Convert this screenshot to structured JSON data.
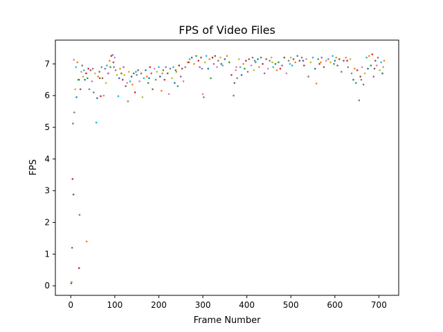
{
  "chart_data": {
    "type": "scatter",
    "title": "FPS of Video Files",
    "xlabel": "Frame Number",
    "ylabel": "FPS",
    "xlim": [
      -35,
      745
    ],
    "ylim": [
      -0.3,
      7.75
    ],
    "xticks": [
      0,
      100,
      200,
      300,
      400,
      500,
      600,
      700
    ],
    "yticks": [
      0,
      1,
      2,
      3,
      4,
      5,
      6,
      7
    ],
    "grid": false,
    "palette": [
      "#1f77b4",
      "#ff7f0e",
      "#2ca02c",
      "#d62728",
      "#9467bd",
      "#8c564b",
      "#e377c2",
      "#7f7f7f",
      "#bcbd22",
      "#17becf"
    ],
    "points": [
      [
        1,
        0.08
      ],
      [
        2,
        0.12
      ],
      [
        3,
        1.2
      ],
      [
        4,
        3.37
      ],
      [
        5,
        5.12
      ],
      [
        6,
        2.88
      ],
      [
        7,
        7.13
      ],
      [
        8,
        5.47
      ],
      [
        10,
        6.2
      ],
      [
        12,
        6.9
      ],
      [
        13,
        5.95
      ],
      [
        15,
        7.05
      ],
      [
        17,
        6.5
      ],
      [
        19,
        0.56
      ],
      [
        20,
        2.24
      ],
      [
        22,
        6.2
      ],
      [
        24,
        6.75
      ],
      [
        26,
        6.95
      ],
      [
        28,
        6.6
      ],
      [
        30,
        6.8
      ],
      [
        32,
        6.5
      ],
      [
        36,
        1.4
      ],
      [
        38,
        6.55
      ],
      [
        40,
        6.85
      ],
      [
        42,
        6.2
      ],
      [
        45,
        6.8
      ],
      [
        48,
        6.45
      ],
      [
        52,
        6.1
      ],
      [
        55,
        6.7
      ],
      [
        58,
        5.15
      ],
      [
        60,
        5.92
      ],
      [
        62,
        6.6
      ],
      [
        65,
        6.75
      ],
      [
        68,
        5.98
      ],
      [
        70,
        6.9
      ],
      [
        72,
        6.55
      ],
      [
        75,
        6.0
      ],
      [
        78,
        6.85
      ],
      [
        80,
        6.4
      ],
      [
        82,
        6.95
      ],
      [
        85,
        6.7
      ],
      [
        88,
        7.1
      ],
      [
        90,
        6.9
      ],
      [
        92,
        7.25
      ],
      [
        95,
        7.28
      ],
      [
        97,
        7.05
      ],
      [
        100,
        7.2
      ],
      [
        102,
        6.8
      ],
      [
        105,
        6.65
      ],
      [
        108,
        5.98
      ],
      [
        110,
        6.55
      ],
      [
        112,
        6.85
      ],
      [
        115,
        6.7
      ],
      [
        118,
        6.5
      ],
      [
        120,
        6.9
      ],
      [
        125,
        6.3
      ],
      [
        128,
        6.4
      ],
      [
        130,
        5.82
      ],
      [
        132,
        6.75
      ],
      [
        135,
        6.45
      ],
      [
        138,
        6.6
      ],
      [
        140,
        6.35
      ],
      [
        143,
        6.7
      ],
      [
        146,
        6.1
      ],
      [
        150,
        6.65
      ],
      [
        153,
        6.8
      ],
      [
        156,
        6.45
      ],
      [
        160,
        6.7
      ],
      [
        163,
        5.95
      ],
      [
        166,
        6.55
      ],
      [
        170,
        6.8
      ],
      [
        173,
        6.6
      ],
      [
        176,
        6.4
      ],
      [
        180,
        6.9
      ],
      [
        183,
        6.7
      ],
      [
        186,
        6.2
      ],
      [
        190,
        6.85
      ],
      [
        193,
        6.5
      ],
      [
        196,
        6.75
      ],
      [
        200,
        6.9
      ],
      [
        203,
        6.6
      ],
      [
        206,
        6.15
      ],
      [
        210,
        6.8
      ],
      [
        213,
        6.5
      ],
      [
        216,
        6.9
      ],
      [
        220,
        6.7
      ],
      [
        223,
        6.05
      ],
      [
        226,
        6.85
      ],
      [
        230,
        6.55
      ],
      [
        233,
        6.9
      ],
      [
        236,
        6.4
      ],
      [
        240,
        6.75
      ],
      [
        243,
        6.3
      ],
      [
        246,
        6.95
      ],
      [
        250,
        6.6
      ],
      [
        253,
        6.85
      ],
      [
        256,
        6.45
      ],
      [
        260,
        6.9
      ],
      [
        265,
        7.05
      ],
      [
        270,
        7.15
      ],
      [
        275,
        7.2
      ],
      [
        280,
        7.0
      ],
      [
        285,
        7.25
      ],
      [
        290,
        7.1
      ],
      [
        293,
        6.9
      ],
      [
        296,
        7.2
      ],
      [
        300,
        6.05
      ],
      [
        302,
        5.95
      ],
      [
        305,
        7.05
      ],
      [
        308,
        7.25
      ],
      [
        312,
        6.85
      ],
      [
        315,
        7.15
      ],
      [
        318,
        6.55
      ],
      [
        322,
        7.2
      ],
      [
        325,
        7.0
      ],
      [
        328,
        7.25
      ],
      [
        332,
        6.9
      ],
      [
        335,
        7.1
      ],
      [
        340,
        7.2
      ],
      [
        345,
        6.95
      ],
      [
        350,
        7.15
      ],
      [
        355,
        7.25
      ],
      [
        360,
        7.05
      ],
      [
        365,
        6.65
      ],
      [
        370,
        6.0
      ],
      [
        372,
        6.4
      ],
      [
        375,
        6.8
      ],
      [
        378,
        6.55
      ],
      [
        382,
        7.15
      ],
      [
        385,
        6.9
      ],
      [
        388,
        6.65
      ],
      [
        392,
        7.0
      ],
      [
        395,
        6.85
      ],
      [
        398,
        7.1
      ],
      [
        402,
        6.75
      ],
      [
        405,
        7.15
      ],
      [
        410,
        6.95
      ],
      [
        413,
        7.2
      ],
      [
        416,
        6.8
      ],
      [
        420,
        7.05
      ],
      [
        425,
        7.15
      ],
      [
        428,
        6.9
      ],
      [
        432,
        7.2
      ],
      [
        436,
        7.0
      ],
      [
        440,
        6.7
      ],
      [
        444,
        7.15
      ],
      [
        448,
        6.85
      ],
      [
        452,
        7.1
      ],
      [
        456,
        7.2
      ],
      [
        460,
        6.9
      ],
      [
        465,
        7.0
      ],
      [
        468,
        6.8
      ],
      [
        472,
        7.05
      ],
      [
        476,
        6.85
      ],
      [
        480,
        6.95
      ],
      [
        485,
        7.2
      ],
      [
        490,
        6.7
      ],
      [
        495,
        7.1
      ],
      [
        500,
        7.2
      ],
      [
        503,
        6.95
      ],
      [
        506,
        7.15
      ],
      [
        510,
        7.05
      ],
      [
        515,
        7.25
      ],
      [
        520,
        7.1
      ],
      [
        525,
        7.2
      ],
      [
        530,
        6.95
      ],
      [
        535,
        7.15
      ],
      [
        540,
        6.6
      ],
      [
        545,
        7.05
      ],
      [
        550,
        7.2
      ],
      [
        555,
        6.85
      ],
      [
        558,
        6.38
      ],
      [
        562,
        7.15
      ],
      [
        565,
        7.0
      ],
      [
        570,
        7.2
      ],
      [
        575,
        6.9
      ],
      [
        580,
        7.1
      ],
      [
        585,
        7.15
      ],
      [
        590,
        7.05
      ],
      [
        595,
        7.25
      ],
      [
        600,
        7.1
      ],
      [
        603,
        7.2
      ],
      [
        606,
        6.95
      ],
      [
        610,
        7.15
      ],
      [
        615,
        6.75
      ],
      [
        620,
        7.1
      ],
      [
        625,
        7.2
      ],
      [
        630,
        6.9
      ],
      [
        635,
        7.15
      ],
      [
        638,
        6.7
      ],
      [
        642,
        6.5
      ],
      [
        645,
        6.85
      ],
      [
        648,
        6.4
      ],
      [
        651,
        6.8
      ],
      [
        655,
        5.85
      ],
      [
        658,
        6.6
      ],
      [
        662,
        6.9
      ],
      [
        665,
        6.35
      ],
      [
        668,
        6.7
      ],
      [
        672,
        7.2
      ],
      [
        675,
        6.85
      ],
      [
        678,
        7.25
      ],
      [
        682,
        6.95
      ],
      [
        685,
        7.3
      ],
      [
        688,
        6.6
      ],
      [
        692,
        7.1
      ],
      [
        695,
        6.95
      ],
      [
        698,
        7.2
      ],
      [
        702,
        6.8
      ],
      [
        705,
        7.05
      ],
      [
        708,
        6.7
      ],
      [
        712,
        7.1
      ],
      [
        19,
        6.5
      ],
      [
        35,
        6.7
      ],
      [
        50,
        6.85
      ],
      [
        66,
        6.55
      ],
      [
        86,
        6.7
      ],
      [
        98,
        6.9
      ],
      [
        122,
        6.65
      ],
      [
        148,
        6.75
      ],
      [
        178,
        6.55
      ],
      [
        208,
        6.7
      ],
      [
        238,
        6.8
      ],
      [
        268,
        7.05
      ],
      [
        298,
        6.85
      ],
      [
        342,
        7.0
      ],
      [
        376,
        6.9
      ],
      [
        418,
        7.1
      ],
      [
        458,
        7.05
      ],
      [
        498,
        7.0
      ],
      [
        528,
        7.1
      ],
      [
        568,
        7.05
      ],
      [
        598,
        7.0
      ],
      [
        628,
        7.1
      ],
      [
        660,
        6.5
      ],
      [
        690,
        6.85
      ],
      [
        710,
        6.9
      ]
    ]
  }
}
